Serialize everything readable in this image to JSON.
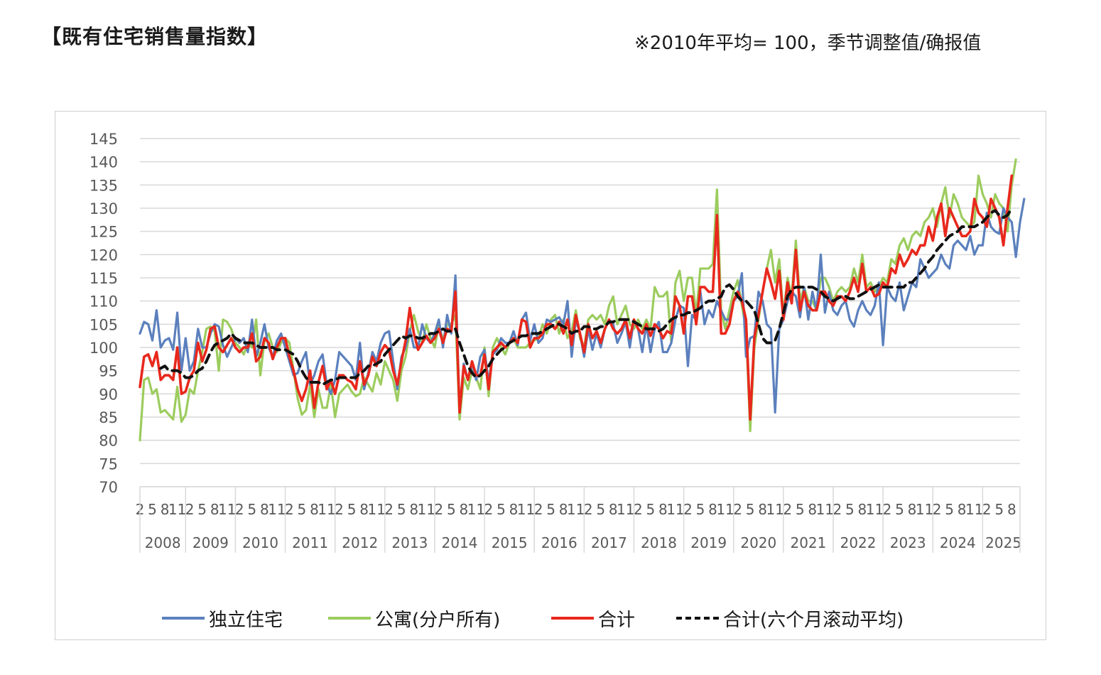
{
  "page": {
    "title": "【既有住宅销售量指数】",
    "note": "※2010年平均= 100，季节调整值/确报值"
  },
  "colors": {
    "detached": "#5b80bd",
    "condo": "#9ccc5e",
    "total": "#e8281c",
    "moving_avg": "#111111",
    "grid": "#d9d9d9",
    "axis_text": "#595959"
  },
  "chart_data": {
    "type": "line",
    "title": "",
    "xlabel": "",
    "ylabel": "",
    "ylim": [
      70,
      145
    ],
    "yticks": [
      70,
      75,
      80,
      85,
      90,
      95,
      100,
      105,
      110,
      115,
      120,
      125,
      130,
      135,
      140,
      145
    ],
    "grid": true,
    "legend_position": "bottom",
    "x_start": "2008-02",
    "x_end": "2025-09",
    "years": [
      "2008",
      "2009",
      "2010",
      "2011",
      "2012",
      "2013",
      "2014",
      "2015",
      "2016",
      "2017",
      "2018",
      "2019",
      "2020",
      "2021",
      "2022",
      "2023",
      "2024",
      "2025"
    ],
    "series": [
      {
        "name": "独立住宅",
        "key": "detached",
        "values": [
          103,
          105.5,
          105,
          101.5,
          108,
          100,
          101.5,
          102,
          99.5,
          107.5,
          95,
          102,
          95,
          97,
          104,
          100,
          100,
          103,
          105,
          104.5,
          100.5,
          98,
          100,
          102,
          101,
          102,
          99,
          106,
          98,
          101,
          105,
          100,
          98,
          101.5,
          103,
          100,
          97,
          94,
          94.5,
          97,
          99,
          92,
          94,
          97,
          98.5,
          92,
          90,
          93,
          99,
          98,
          97,
          96,
          93,
          101,
          91,
          94.5,
          99,
          97,
          101,
          103,
          103.5,
          97,
          91,
          98,
          100,
          104,
          100,
          100,
          105,
          102,
          101,
          103,
          106,
          100,
          107,
          103,
          115.5,
          86.5,
          96.5,
          93,
          96.5,
          93,
          98,
          99.5,
          92.5,
          98.5,
          99.5,
          102,
          101,
          101,
          103.5,
          100.5,
          106,
          107.5,
          101.5,
          105,
          101,
          102,
          106,
          105.5,
          106,
          106.5,
          105,
          110,
          98,
          106,
          103,
          98,
          104,
          99.5,
          103,
          100,
          104,
          106,
          105,
          101,
          103,
          105.5,
          100,
          106,
          104,
          99,
          105,
          99,
          104,
          105.5,
          99,
          99,
          101,
          106,
          109,
          108.5,
          96,
          107,
          106,
          112,
          105,
          108,
          106.5,
          110,
          108,
          106,
          106,
          110,
          111,
          116,
          98,
          102,
          102.5,
          112,
          110,
          105,
          104,
          86,
          104,
          106,
          110,
          112,
          111,
          106.5,
          113,
          106,
          112,
          108,
          120,
          107.5,
          112,
          108,
          107,
          109,
          110,
          106,
          104.5,
          108,
          110,
          108,
          107,
          109,
          114,
          100.5,
          113,
          111,
          110,
          114,
          108,
          111,
          114,
          113,
          119,
          117,
          115,
          116,
          117,
          120,
          118,
          117,
          122,
          123,
          122,
          121,
          124,
          120,
          122,
          122,
          129,
          126,
          125,
          124.5,
          130,
          128,
          127,
          119.5,
          127,
          132
        ]
      },
      {
        "name": "公寓(分户所有)",
        "key": "condo",
        "values": [
          80,
          93,
          93.5,
          90,
          91,
          86,
          86.5,
          85.5,
          84.5,
          91.5,
          84,
          85.5,
          91,
          90,
          95,
          99,
          104,
          104.5,
          103.5,
          95,
          106,
          105.5,
          104,
          101,
          100,
          98.5,
          101,
          100,
          106,
          94,
          101.5,
          103,
          100,
          99,
          101,
          102,
          101,
          95,
          89,
          85.5,
          86.5,
          92,
          85,
          91,
          87,
          87,
          92,
          85,
          90,
          91,
          92,
          90.5,
          89.5,
          90,
          93.5,
          92,
          90.5,
          94.5,
          92,
          97,
          95,
          93,
          88.5,
          95,
          98,
          103.5,
          107,
          103.5,
          101,
          105,
          102,
          100,
          105,
          101.5,
          105,
          105,
          107,
          84.5,
          93.5,
          91,
          95,
          93.5,
          91,
          100,
          89.5,
          100,
          102,
          100,
          98.5,
          101,
          102,
          100,
          100,
          100,
          101,
          101.5,
          102,
          105,
          103,
          106,
          107,
          103,
          106,
          102,
          103.5,
          108,
          102,
          100,
          106,
          107,
          106,
          107,
          105,
          109,
          111,
          105,
          107,
          109,
          105,
          104,
          106,
          104,
          106,
          104,
          113,
          111,
          111,
          112,
          101,
          114,
          116.5,
          110,
          115,
          115,
          107,
          117,
          117,
          117,
          118,
          134,
          108,
          104,
          108,
          112,
          114.5,
          109,
          104,
          82,
          100,
          106,
          112,
          117,
          121,
          114,
          119,
          107,
          115,
          111,
          123,
          110,
          113,
          110,
          110,
          108,
          115,
          115,
          113,
          110,
          112,
          113,
          112,
          113,
          117,
          114,
          120,
          113,
          114,
          112,
          113,
          115,
          114,
          119,
          118,
          122,
          123.5,
          121,
          124,
          125,
          124,
          127,
          128,
          130,
          126,
          131,
          134.5,
          128,
          133,
          131,
          128,
          127,
          126,
          127,
          137,
          133,
          131,
          128,
          133,
          131,
          130,
          125,
          135,
          140.5
        ]
      },
      {
        "name": "合计",
        "key": "total",
        "values": [
          91.5,
          98,
          98.5,
          96,
          99,
          93,
          94,
          94,
          93,
          100,
          90,
          90.5,
          93.5,
          95,
          101,
          97,
          99.5,
          104,
          104.5,
          100,
          99,
          100.5,
          102,
          100,
          99,
          100,
          100,
          103,
          97,
          98,
          102,
          101,
          97.5,
          100,
          102,
          102,
          98,
          95,
          91,
          88.5,
          91,
          95,
          87,
          92.5,
          96,
          91,
          93,
          90,
          94,
          94,
          93,
          92.5,
          91,
          97,
          92,
          94,
          98,
          96,
          99,
          100.5,
          99.5,
          95,
          92,
          97,
          101.5,
          108.5,
          103,
          99.5,
          101,
          102.5,
          101,
          102,
          104,
          101,
          104,
          103.5,
          112,
          86,
          96,
          93,
          97,
          94,
          94,
          98.5,
          91,
          99,
          100,
          101,
          100,
          101,
          102,
          101,
          106,
          105.5,
          100,
          102,
          102,
          103,
          105,
          105,
          104,
          105.5,
          103,
          106,
          100.5,
          107,
          103,
          99,
          105,
          102,
          103.5,
          101,
          104,
          106,
          104,
          103,
          104,
          106,
          102,
          106,
          104,
          103,
          105,
          102.5,
          105,
          104,
          102,
          103.5,
          103,
          111,
          109,
          103,
          111,
          111,
          105,
          113,
          113,
          112,
          112,
          128.5,
          103,
          103,
          105,
          110,
          112,
          110,
          106,
          84.5,
          102,
          107,
          112,
          117,
          114,
          110.5,
          116.5,
          106,
          114,
          109.5,
          121,
          108,
          112,
          109,
          108,
          108,
          112,
          112,
          110,
          109,
          111,
          111,
          110,
          112,
          115,
          112,
          118,
          112,
          113,
          111,
          111.5,
          114,
          113,
          117,
          116,
          120,
          117.5,
          119,
          121,
          120,
          122,
          122,
          126,
          123,
          128,
          131,
          124,
          130,
          128,
          126,
          124,
          124,
          125,
          132,
          129,
          128,
          126,
          132,
          130,
          128,
          122,
          130,
          137
        ]
      },
      {
        "name": "合计(六个月滚动平均)",
        "key": "moving_avg",
        "values": [
          null,
          null,
          null,
          null,
          null,
          95.5,
          96,
          95,
          95,
          95,
          94.5,
          93.5,
          93.5,
          94,
          95,
          95.5,
          97,
          99,
          100.5,
          101,
          101.5,
          102,
          103,
          102,
          101.5,
          101,
          101,
          101,
          100.5,
          100,
          100,
          100,
          100,
          99.5,
          99.5,
          99.5,
          99,
          98.5,
          97,
          95,
          93.5,
          92.5,
          92.5,
          92.5,
          92,
          92.5,
          93,
          93,
          93.5,
          93.5,
          93.5,
          93.5,
          93.5,
          94.5,
          95,
          96,
          96,
          96.5,
          97,
          98.5,
          99.5,
          100.5,
          101.5,
          102.5,
          102,
          102.5,
          102.5,
          102,
          102,
          102.5,
          103,
          103,
          103.5,
          104,
          103.5,
          103.5,
          104,
          101,
          98.5,
          96,
          94.5,
          93.5,
          94,
          95,
          96,
          97.5,
          98.5,
          99.5,
          100,
          101,
          101.5,
          102,
          102.5,
          102.5,
          103,
          103,
          103,
          103.5,
          104,
          104.5,
          105,
          105,
          104.5,
          104,
          103,
          103.5,
          103.5,
          104.5,
          104.5,
          104,
          104,
          104.5,
          104.5,
          105.5,
          105.5,
          106,
          106,
          106,
          106,
          105.5,
          105,
          104.5,
          104,
          104,
          104,
          103.5,
          104,
          105,
          106,
          106.5,
          107,
          107,
          107.5,
          107.5,
          108,
          108.5,
          109.5,
          110,
          110,
          110.5,
          111,
          113,
          113.5,
          112.5,
          111,
          110,
          110,
          109,
          108,
          105,
          102,
          101,
          101,
          101.5,
          104,
          107.5,
          111,
          112.5,
          113,
          113,
          113,
          113,
          113,
          112.5,
          112,
          111,
          110.5,
          110,
          110.5,
          111,
          111,
          110.5,
          110.5,
          111,
          111.5,
          112,
          112.5,
          113,
          113.5,
          113,
          113,
          113,
          113,
          113,
          113,
          114,
          114,
          115,
          116,
          117,
          118.5,
          119.5,
          121,
          122,
          123,
          124,
          124.5,
          125,
          126,
          126,
          126,
          126,
          126.5,
          127,
          128,
          129,
          129.5,
          128.5,
          128,
          128.5,
          130
        ]
      }
    ]
  }
}
